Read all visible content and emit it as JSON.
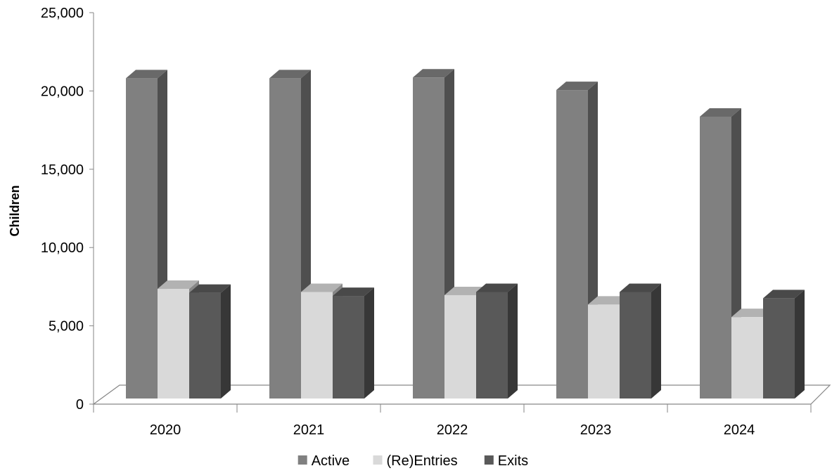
{
  "chart_data": {
    "type": "bar",
    "style": "3d-clustered-column",
    "categories": [
      "2020",
      "2021",
      "2022",
      "2023",
      "2024"
    ],
    "series": [
      {
        "name": "Active",
        "values": [
          20450,
          20450,
          20500,
          19700,
          18000
        ],
        "color": "#808080"
      },
      {
        "name": "(Re)Entries",
        "values": [
          7000,
          6800,
          6600,
          6000,
          5200
        ],
        "color": "#d9d9d9"
      },
      {
        "name": "Exits",
        "values": [
          6750,
          6550,
          6800,
          6800,
          6400
        ],
        "color": "#595959"
      }
    ],
    "ylabel": "Children",
    "xlabel": "",
    "ylim": [
      0,
      25000
    ],
    "yticks": [
      "0",
      "5,000",
      "10,000",
      "15,000",
      "20,000",
      "25,000"
    ],
    "grid": false,
    "legend": "bottom"
  }
}
